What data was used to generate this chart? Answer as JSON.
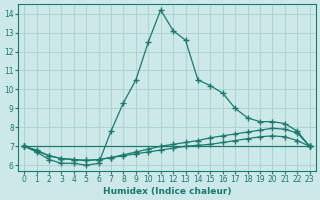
{
  "line1_x": [
    0,
    1,
    2,
    3,
    4,
    5,
    6,
    7,
    8,
    9,
    10,
    11,
    12,
    13,
    14,
    15,
    16,
    17,
    18,
    19,
    20,
    21,
    22,
    23
  ],
  "line1_y": [
    7.0,
    6.7,
    6.3,
    6.1,
    6.1,
    6.0,
    6.1,
    7.8,
    9.3,
    10.5,
    12.5,
    14.2,
    13.1,
    12.6,
    10.5,
    10.2,
    9.8,
    9.0,
    8.5,
    8.3,
    8.3,
    8.2,
    7.8,
    7.0
  ],
  "line2_x": [
    0,
    1,
    2,
    3,
    4,
    5,
    6,
    7,
    8,
    9,
    10,
    11,
    12,
    13,
    14,
    15,
    16,
    17,
    18,
    19,
    20,
    21,
    22,
    23
  ],
  "line2_y": [
    7.0,
    6.75,
    6.5,
    6.35,
    6.3,
    6.25,
    6.3,
    6.4,
    6.55,
    6.7,
    6.85,
    7.0,
    7.1,
    7.2,
    7.3,
    7.45,
    7.55,
    7.65,
    7.75,
    7.85,
    7.95,
    7.9,
    7.7,
    7.0
  ],
  "line3_x": [
    0,
    1,
    2,
    3,
    4,
    5,
    6,
    7,
    8,
    9,
    10,
    11,
    12,
    13,
    14,
    15,
    16,
    17,
    18,
    19,
    20,
    21,
    22,
    23
  ],
  "line3_y": [
    7.0,
    6.8,
    6.5,
    6.35,
    6.3,
    6.25,
    6.3,
    6.4,
    6.5,
    6.6,
    6.7,
    6.8,
    6.9,
    7.0,
    7.05,
    7.1,
    7.2,
    7.3,
    7.4,
    7.5,
    7.55,
    7.5,
    7.3,
    7.0
  ],
  "line4_x": [
    0,
    23
  ],
  "line4_y": [
    7.0,
    7.0
  ],
  "bg_color": "#cce8e8",
  "line_color": "#1a7a6e",
  "grid_color": "#aacece",
  "xlabel": "Humidex (Indice chaleur)",
  "xlim": [
    -0.5,
    23.5
  ],
  "ylim": [
    5.7,
    14.5
  ],
  "yticks": [
    6,
    7,
    8,
    9,
    10,
    11,
    12,
    13,
    14
  ],
  "xticks": [
    0,
    1,
    2,
    3,
    4,
    5,
    6,
    7,
    8,
    9,
    10,
    11,
    12,
    13,
    14,
    15,
    16,
    17,
    18,
    19,
    20,
    21,
    22,
    23
  ]
}
